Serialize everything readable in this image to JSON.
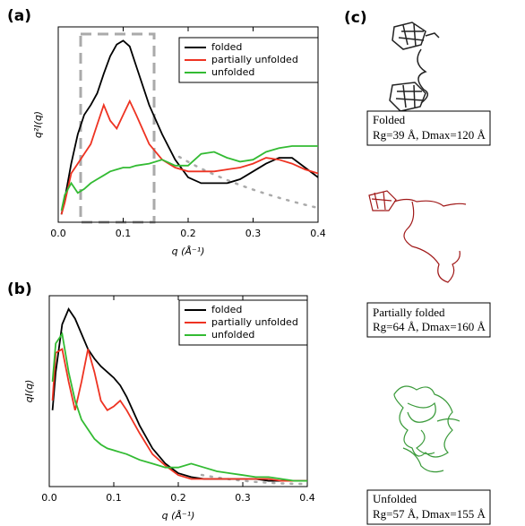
{
  "chart_data": [
    {
      "type": "line",
      "panel": "(a)",
      "x_label": "q (Å⁻¹)",
      "y_label": "q²I(q)",
      "x": [
        0.005,
        0.01,
        0.02,
        0.03,
        0.04,
        0.05,
        0.06,
        0.07,
        0.08,
        0.09,
        0.1,
        0.11,
        0.12,
        0.14,
        0.16,
        0.18,
        0.2,
        0.22,
        0.24,
        0.26,
        0.28,
        0.3,
        0.32,
        0.34,
        0.36,
        0.38,
        0.4
      ],
      "xlim": [
        0,
        0.4
      ],
      "ylim": [
        0,
        1
      ],
      "xticks": [
        {
          "value": 0,
          "label": "0.0"
        },
        0.1,
        0.2,
        0.3,
        0.4
      ],
      "series": [
        {
          "name": "folded",
          "color": "#000000",
          "values": [
            0.04,
            0.12,
            0.3,
            0.45,
            0.55,
            0.6,
            0.66,
            0.76,
            0.85,
            0.91,
            0.93,
            0.9,
            0.8,
            0.6,
            0.45,
            0.32,
            0.23,
            0.2,
            0.2,
            0.2,
            0.22,
            0.26,
            0.3,
            0.33,
            0.33,
            0.28,
            0.23
          ]
        },
        {
          "name": "partially unfolded",
          "color": "#ee3322",
          "values": [
            0.04,
            0.1,
            0.25,
            0.3,
            0.35,
            0.4,
            0.5,
            0.6,
            0.52,
            0.48,
            0.55,
            0.62,
            0.55,
            0.4,
            0.32,
            0.28,
            0.26,
            0.26,
            0.26,
            0.27,
            0.28,
            0.3,
            0.33,
            0.32,
            0.3,
            0.27,
            0.25
          ]
        },
        {
          "name": "unfolded",
          "color": "#33bb33",
          "values": [
            0.06,
            0.14,
            0.2,
            0.15,
            0.17,
            0.2,
            0.22,
            0.24,
            0.26,
            0.27,
            0.28,
            0.28,
            0.29,
            0.3,
            0.32,
            0.29,
            0.29,
            0.35,
            0.36,
            0.33,
            0.31,
            0.32,
            0.36,
            0.38,
            0.39,
            0.39,
            0.39
          ]
        }
      ]
    },
    {
      "type": "line",
      "panel": "(b)",
      "x_label": "q (Å⁻¹)",
      "y_label": "qI(q)",
      "x": [
        0.005,
        0.01,
        0.02,
        0.03,
        0.04,
        0.05,
        0.06,
        0.07,
        0.08,
        0.09,
        0.1,
        0.11,
        0.12,
        0.14,
        0.16,
        0.18,
        0.2,
        0.22,
        0.24,
        0.26,
        0.28,
        0.3,
        0.32,
        0.34,
        0.36,
        0.38,
        0.4
      ],
      "xlim": [
        0,
        0.4
      ],
      "ylim": [
        0,
        1
      ],
      "xticks": [
        {
          "value": 0,
          "label": "0.0"
        },
        0.1,
        0.2,
        0.3,
        0.4
      ],
      "series": [
        {
          "name": "folded",
          "color": "#000000",
          "values": [
            0.4,
            0.6,
            0.85,
            0.93,
            0.88,
            0.8,
            0.72,
            0.67,
            0.63,
            0.6,
            0.57,
            0.53,
            0.47,
            0.32,
            0.2,
            0.12,
            0.07,
            0.05,
            0.04,
            0.04,
            0.04,
            0.04,
            0.04,
            0.03,
            0.03,
            0.03,
            0.03
          ]
        },
        {
          "name": "partially unfolded",
          "color": "#ee3322",
          "values": [
            0.45,
            0.7,
            0.72,
            0.55,
            0.4,
            0.55,
            0.72,
            0.6,
            0.45,
            0.4,
            0.42,
            0.45,
            0.4,
            0.28,
            0.17,
            0.11,
            0.06,
            0.04,
            0.04,
            0.04,
            0.04,
            0.04,
            0.04,
            0.04,
            0.03,
            0.03,
            0.03
          ]
        },
        {
          "name": "unfolded",
          "color": "#33bb33",
          "values": [
            0.55,
            0.75,
            0.8,
            0.6,
            0.45,
            0.35,
            0.3,
            0.25,
            0.22,
            0.2,
            0.19,
            0.18,
            0.17,
            0.14,
            0.12,
            0.1,
            0.1,
            0.12,
            0.1,
            0.08,
            0.07,
            0.06,
            0.05,
            0.05,
            0.04,
            0.03,
            0.03
          ]
        }
      ]
    }
  ],
  "panel_c": {
    "label": "(c)",
    "structures": [
      {
        "state": "Folded",
        "params": "Rg=39 Å, Dmax=120 Å"
      },
      {
        "state": "Partially folded",
        "params": "Rg=64 Å, Dmax=160 Å"
      },
      {
        "state": "Unfolded",
        "params": "Rg=57 Å, Dmax=155 Å"
      }
    ]
  }
}
